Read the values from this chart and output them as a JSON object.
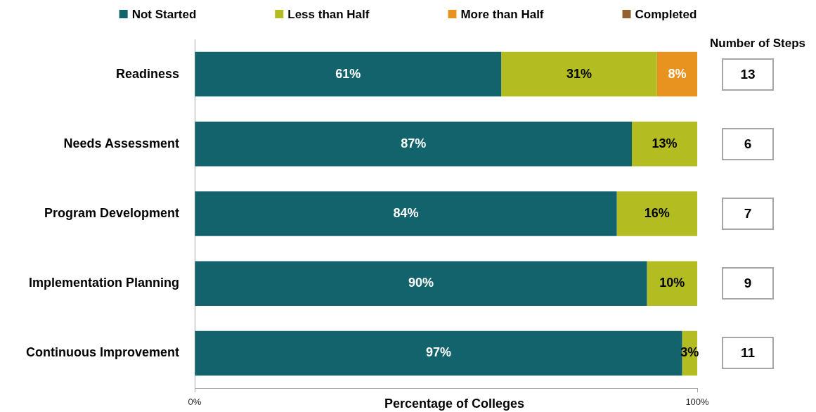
{
  "chart_data": {
    "type": "bar",
    "orientation": "horizontal",
    "stacked": true,
    "categories": [
      "Readiness",
      "Needs Assessment",
      "Program Development",
      "Implementation Planning",
      "Continuous Improvement"
    ],
    "series": [
      {
        "name": "Not Started",
        "color": "#12636b",
        "values": [
          61,
          87,
          84,
          90,
          97
        ],
        "value_labels": [
          "61%",
          "87%",
          "84%",
          "90%",
          "97%"
        ]
      },
      {
        "name": "Less than Half",
        "color": "#b3bc21",
        "values": [
          31,
          13,
          16,
          10,
          3
        ],
        "value_labels": [
          "31%",
          "13%",
          "16%",
          "10%",
          "3%"
        ]
      },
      {
        "name": "More than Half",
        "color": "#e8931f",
        "values": [
          8,
          null,
          null,
          null,
          null
        ],
        "value_labels": [
          "8%",
          null,
          null,
          null,
          null
        ]
      },
      {
        "name": "Completed",
        "color": "#93602e",
        "values": [
          null,
          null,
          null,
          null,
          null
        ]
      }
    ],
    "xlim": [
      0,
      100
    ],
    "xticks": [
      {
        "value": 0,
        "label": "0%"
      },
      {
        "value": 100,
        "label": "100%"
      }
    ],
    "xlabel": "Percentage of Colleges",
    "legend": "top",
    "grid": false,
    "annotations": [
      "Number of Steps",
      "13",
      "6",
      "7",
      "9",
      "11"
    ]
  }
}
